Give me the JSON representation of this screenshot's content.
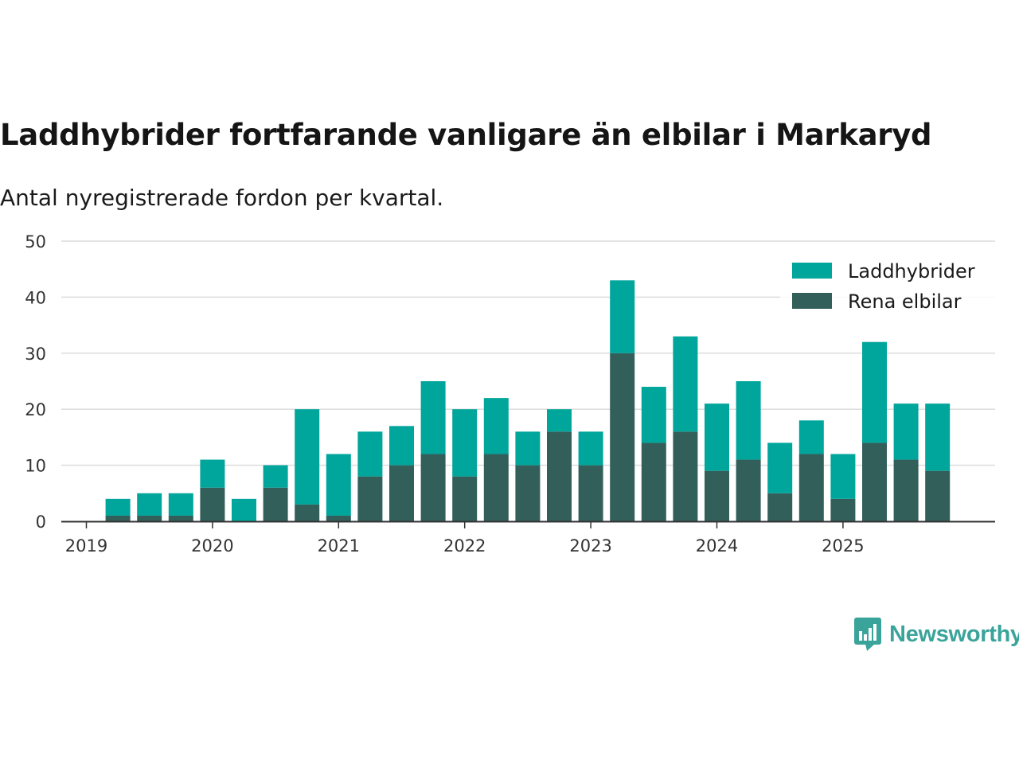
{
  "title": "Laddhybrider fortfarande vanligare än elbilar i Markaryd",
  "subtitle": "Antal nyregistrerade fordon per kvartal.",
  "brand": {
    "name": "Newsworthy",
    "color": "#3aa49a"
  },
  "chart_data": {
    "type": "bar",
    "stacked": true,
    "categories": [
      "2019 Q1",
      "2019 Q2",
      "2019 Q3",
      "2019 Q4",
      "2020 Q1",
      "2020 Q2",
      "2020 Q3",
      "2020 Q4",
      "2021 Q1",
      "2021 Q2",
      "2021 Q3",
      "2021 Q4",
      "2022 Q1",
      "2022 Q2",
      "2022 Q3",
      "2022 Q4",
      "2023 Q1",
      "2023 Q2",
      "2023 Q3",
      "2023 Q4",
      "2024 Q1",
      "2024 Q2",
      "2024 Q3",
      "2024 Q4",
      "2025 Q1",
      "2025 Q2",
      "2025 Q3",
      "2025 Q4"
    ],
    "series": [
      {
        "name": "Rena elbilar",
        "color": "#335f5b",
        "values": [
          0,
          1,
          1,
          1,
          6,
          0,
          6,
          3,
          1,
          8,
          10,
          12,
          8,
          12,
          10,
          16,
          10,
          30,
          14,
          16,
          9,
          11,
          5,
          12,
          4,
          14,
          11,
          9
        ]
      },
      {
        "name": "Laddhybrider",
        "color": "#00a59b",
        "values": [
          0,
          3,
          4,
          4,
          5,
          4,
          4,
          17,
          11,
          8,
          7,
          13,
          12,
          10,
          6,
          4,
          6,
          13,
          10,
          17,
          12,
          14,
          9,
          6,
          8,
          18,
          10,
          12
        ]
      }
    ],
    "legend_order": [
      "Laddhybrider",
      "Rena elbilar"
    ],
    "legend_position": "top-right",
    "x_tick_labels": [
      "2019",
      "2020",
      "2021",
      "2022",
      "2023",
      "2024",
      "2025"
    ],
    "y_ticks": [
      0,
      10,
      20,
      30,
      40,
      50
    ],
    "ylim": [
      0,
      50
    ],
    "xlabel": "",
    "ylabel": "",
    "grid": true
  }
}
